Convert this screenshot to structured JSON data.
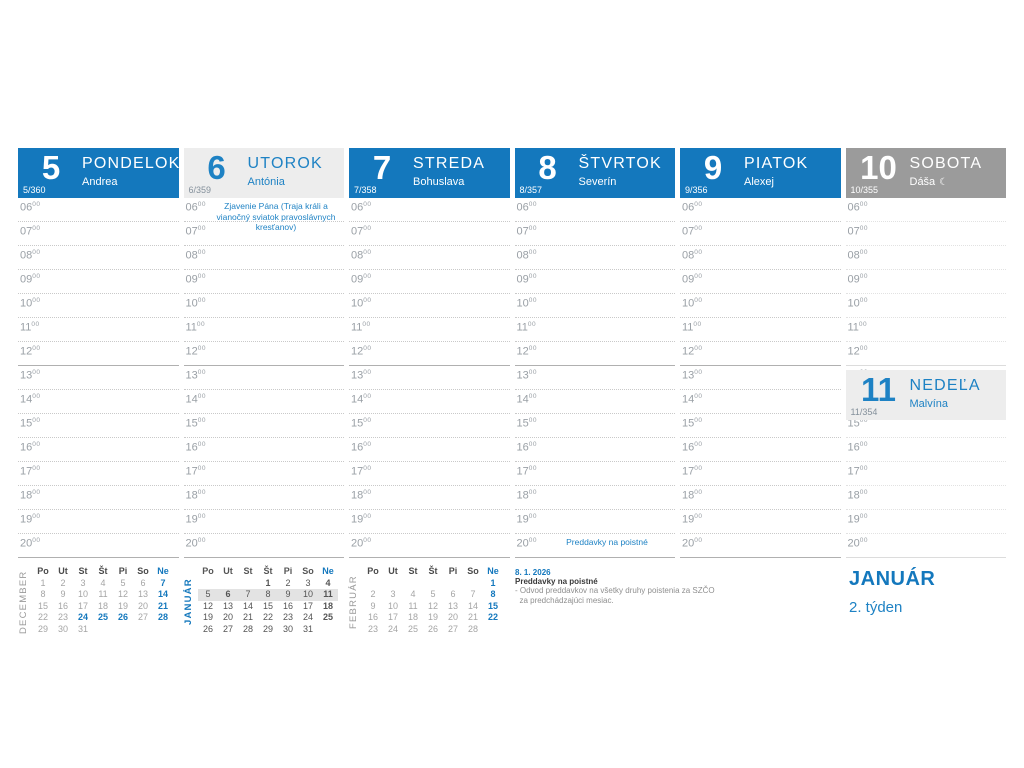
{
  "colors": {
    "accent_blue": "#1478bd",
    "holiday_text_blue": "#1e82c4",
    "saturday_gray": "#9b9b9b",
    "holiday_bg": "#ededed",
    "time_label_gray": "#9aa0a6"
  },
  "week": {
    "month_label": "JANUÁR",
    "week_label": "2. týden"
  },
  "hours": [
    "06",
    "07",
    "08",
    "09",
    "10",
    "11",
    "12",
    "13",
    "14",
    "15",
    "16",
    "17",
    "18",
    "19",
    "20"
  ],
  "minute_sup": "00",
  "days": [
    {
      "num": "5",
      "name": "PONDELOK",
      "person": "Andrea",
      "doy": "5/360",
      "style": "blue"
    },
    {
      "num": "6",
      "name": "UTOROK",
      "person": "Antónia",
      "doy": "6/359",
      "style": "light",
      "note_row": 0,
      "note": "Zjavenie Pána (Traja králi a vianočný sviatok pravoslávnych kresťanov)"
    },
    {
      "num": "7",
      "name": "STREDA",
      "person": "Bohuslava",
      "doy": "7/358",
      "style": "blue"
    },
    {
      "num": "8",
      "name": "ŠTVRTOK",
      "person": "Severín",
      "doy": "8/357",
      "style": "blue",
      "note_row": 14,
      "note": "Preddavky na poistné"
    },
    {
      "num": "9",
      "name": "PIATOK",
      "person": "Alexej",
      "doy": "9/356",
      "style": "blue"
    },
    {
      "num": "10",
      "name": "SOBOTA",
      "person": "Dáša",
      "moon": "☾",
      "doy": "10/355",
      "style": "gray"
    },
    {
      "num": "11",
      "name": "NEDEĽA",
      "person": "Malvína",
      "doy": "11/354",
      "style": "light"
    }
  ],
  "mini_calendars": [
    {
      "label": "DECEMBER",
      "current": false,
      "headers": [
        "Po",
        "Ut",
        "St",
        "Št",
        "Pi",
        "So",
        "Ne"
      ],
      "weeks": [
        [
          "1",
          "2",
          "3",
          "4",
          "5",
          "6",
          "7"
        ],
        [
          "8",
          "9",
          "10",
          "11",
          "12",
          "13",
          "14"
        ],
        [
          "15",
          "16",
          "17",
          "18",
          "19",
          "20",
          "21"
        ],
        [
          "22",
          "23",
          "24",
          "25",
          "26",
          "27",
          "28"
        ],
        [
          "29",
          "30",
          "31",
          "",
          "",
          "",
          ""
        ]
      ],
      "holidays": [
        "24",
        "25",
        "26"
      ],
      "highlight_week": null
    },
    {
      "label": "JANUÁR",
      "current": true,
      "headers": [
        "Po",
        "Ut",
        "St",
        "Št",
        "Pi",
        "So",
        "Ne"
      ],
      "weeks": [
        [
          "",
          "",
          "",
          "1",
          "2",
          "3",
          "4"
        ],
        [
          "5",
          "6",
          "7",
          "8",
          "9",
          "10",
          "11"
        ],
        [
          "12",
          "13",
          "14",
          "15",
          "16",
          "17",
          "18"
        ],
        [
          "19",
          "20",
          "21",
          "22",
          "23",
          "24",
          "25"
        ],
        [
          "26",
          "27",
          "28",
          "29",
          "30",
          "31",
          ""
        ]
      ],
      "holidays": [
        "1",
        "6"
      ],
      "highlight_week": 1
    },
    {
      "label": "FEBRUÁR",
      "current": false,
      "headers": [
        "Po",
        "Ut",
        "St",
        "Št",
        "Pi",
        "So",
        "Ne"
      ],
      "weeks": [
        [
          "",
          "",
          "",
          "",
          "",
          "",
          "1"
        ],
        [
          "2",
          "3",
          "4",
          "5",
          "6",
          "7",
          "8"
        ],
        [
          "9",
          "10",
          "11",
          "12",
          "13",
          "14",
          "15"
        ],
        [
          "16",
          "17",
          "18",
          "19",
          "20",
          "21",
          "22"
        ],
        [
          "23",
          "24",
          "25",
          "26",
          "27",
          "28",
          ""
        ]
      ],
      "holidays": [],
      "highlight_week": null
    }
  ],
  "notes": {
    "date": "8. 1. 2026",
    "title": "Preddavky na poistné",
    "lines": [
      "- Odvod preddavkov na všetky druhy poistenia za SZČO",
      "  za predchádzajúci mesiac."
    ]
  }
}
